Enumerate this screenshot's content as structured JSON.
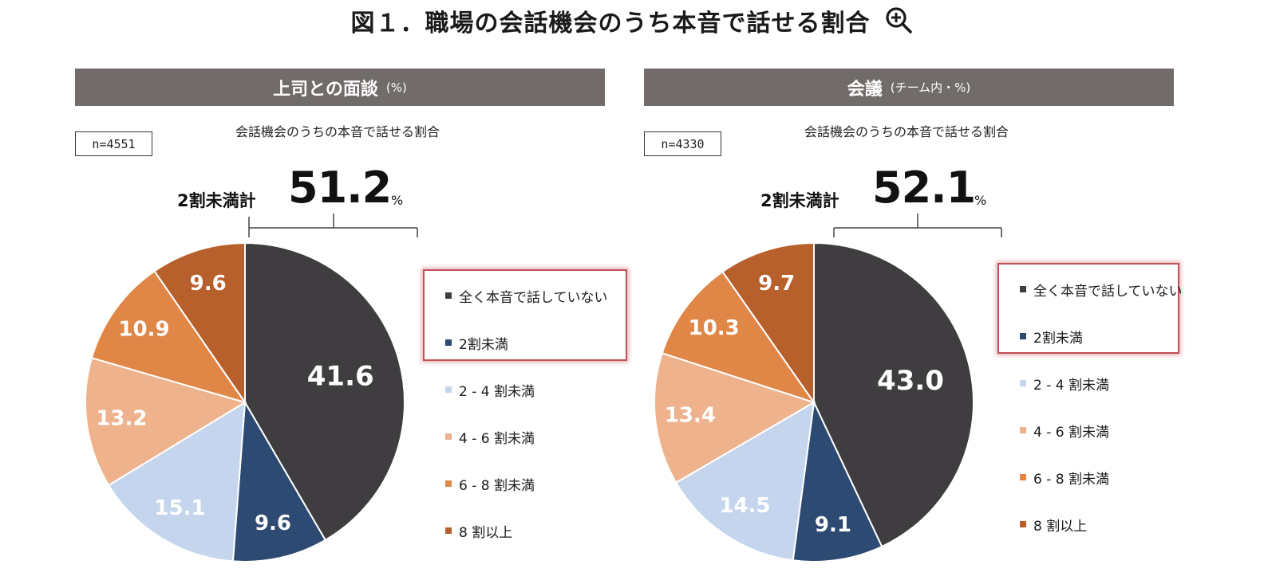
{
  "title": "図１．職場の会話機会のうち本音で話せる割合",
  "zoom_icon": "zoom-in-icon",
  "colors": {
    "header_bg": "#716b69",
    "highlight_border": "#c0505a",
    "slices": [
      "#3f3d40",
      "#2c4a72",
      "#c5d5ee",
      "#eeb38d",
      "#e08646",
      "#b8602c"
    ]
  },
  "legend_labels": [
    "全く本音で話していない",
    "2割未満",
    "2 - 4 割未満",
    "4 - 6 割未満",
    "6 - 8 割未満",
    "8 割以上"
  ],
  "legend_labels_2": [
    "全く本音で話していない",
    "2割未満",
    "2 - 4 割未満",
    "4 - 6 割未満",
    "6 - 8 割未満",
    "8 割以上"
  ],
  "chart_data": [
    {
      "type": "pie",
      "title": "上司との面談",
      "unit_note": "(%)",
      "subtitle": "会話機会のうちの本音で話せる割合",
      "n_label": "n=4551",
      "total_label": "2割未満計",
      "total_value": "51.2",
      "total_unit": "%",
      "categories": [
        "全く本音で話していない",
        "2割未満",
        "2 - 4 割未満",
        "4 - 6 割未満",
        "6 - 8 割未満",
        "8 割以上"
      ],
      "values": [
        41.6,
        9.6,
        15.1,
        13.2,
        10.9,
        9.6
      ],
      "value_labels": [
        "41.6",
        "9.6",
        "15.1",
        "13.2",
        "10.9",
        "9.6"
      ],
      "highlighted_categories": [
        "全く本音で話していない",
        "2割未満"
      ],
      "legend_position": "right"
    },
    {
      "type": "pie",
      "title": "会議",
      "unit_note": "(チーム内・%)",
      "subtitle": "会話機会のうちの本音で話せる割合",
      "n_label": "n=4330",
      "total_label": "2割未満計",
      "total_value": "52.1",
      "total_unit": "%",
      "categories": [
        "全く本音で話していない",
        "2割未満",
        "2 - 4 割未満",
        "4 - 6 割未満",
        "6 - 8 割未満",
        "8 割以上"
      ],
      "values": [
        43.0,
        9.1,
        14.5,
        13.4,
        10.3,
        9.7
      ],
      "value_labels": [
        "43.0",
        "9.1",
        "14.5",
        "13.4",
        "10.3",
        "9.7"
      ],
      "highlighted_categories": [
        "全く本音で話していない",
        "2割未満"
      ],
      "legend_position": "right"
    }
  ]
}
